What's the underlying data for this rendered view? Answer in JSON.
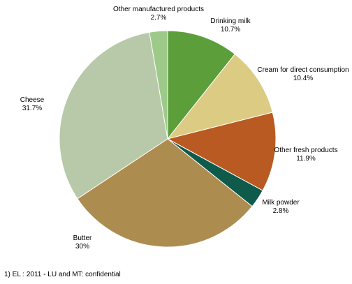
{
  "chart_data": {
    "type": "pie",
    "slices": [
      {
        "label": "Drinking milk",
        "value_text": "10.7%",
        "value": 10.7,
        "color": "#5c9e3a"
      },
      {
        "label": "Cream for direct consumption",
        "value_text": "10.4%",
        "value": 10.4,
        "color": "#dccb83"
      },
      {
        "label": "Other fresh products",
        "value_text": "11.9%",
        "value": 11.9,
        "color": "#b85a21"
      },
      {
        "label": "Milk powder",
        "value_text": "2.8%",
        "value": 2.8,
        "color": "#0e5a4b"
      },
      {
        "label": "Butter",
        "value_text": "30%",
        "value": 30.0,
        "color": "#ad8c4f"
      },
      {
        "label": "Cheese",
        "value_text": "31.7%",
        "value": 31.7,
        "color": "#b8c9a9"
      },
      {
        "label": "Other manufactured products",
        "value_text": "2.7%",
        "value": 2.7,
        "color": "#9dca89"
      }
    ],
    "start": "top",
    "direction": "clockwise"
  },
  "footnote": "1) EL : 2011 - LU and MT: confidential"
}
